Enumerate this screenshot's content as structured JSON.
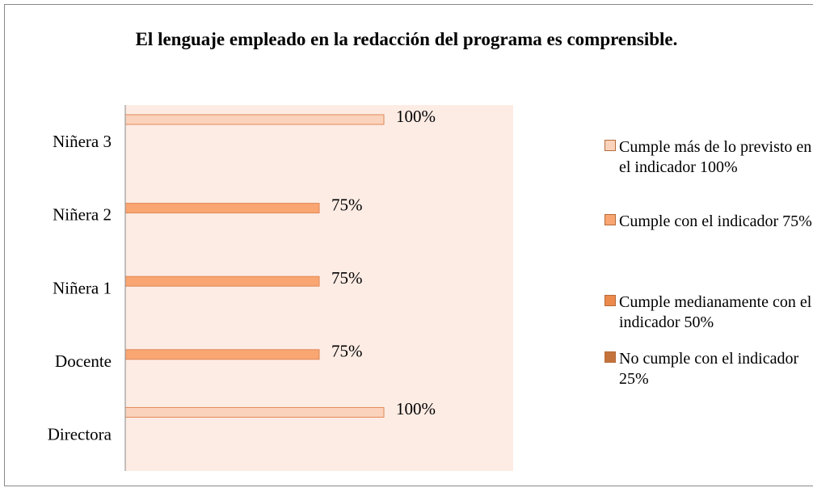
{
  "chart_data": {
    "type": "hbar",
    "title": "El lenguaje empleado en la redacción del programa es comprensible.",
    "categories": [
      "Directora",
      "Docente",
      "Niñera 1",
      "Niñera 2",
      "Niñera 3"
    ],
    "series": [
      {
        "name": "Cumple más de lo previsto en el indicador 100%",
        "color": "#fbd3bc",
        "values": [
          100,
          null,
          null,
          null,
          100
        ],
        "value_labels": [
          "100%",
          null,
          null,
          null,
          "100%"
        ]
      },
      {
        "name": "Cumple con el indicador 75%",
        "color": "#f9a672",
        "values": [
          null,
          75,
          75,
          75,
          null
        ],
        "value_labels": [
          null,
          "75%",
          "75%",
          "75%",
          null
        ]
      },
      {
        "name": "Cumple medianamente con el indicador 50%",
        "color": "#ec8a4c",
        "values": [
          null,
          null,
          null,
          null,
          null
        ],
        "value_labels": [
          null,
          null,
          null,
          null,
          null
        ]
      },
      {
        "name": "No cumple con el indicador 25%",
        "color": "#c4733d",
        "values": [
          null,
          null,
          null,
          null,
          null
        ],
        "value_labels": [
          null,
          null,
          null,
          null,
          null
        ]
      }
    ],
    "xlim": [
      0,
      150
    ]
  }
}
